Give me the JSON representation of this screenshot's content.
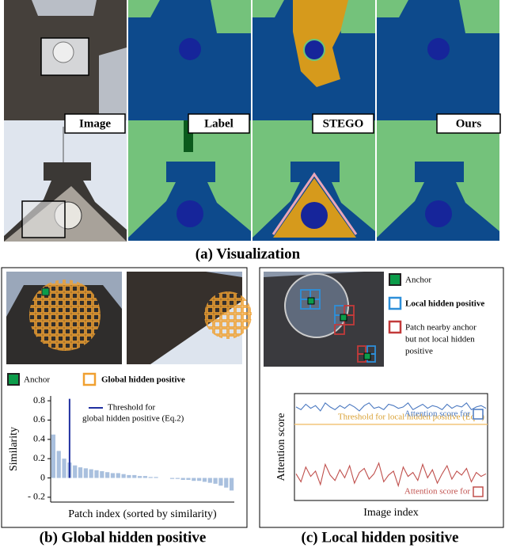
{
  "visualization": {
    "labels": [
      "Image",
      "Label",
      "STEGO",
      "Ours"
    ],
    "caption": "(a) Visualization"
  },
  "panel_b": {
    "legend": [
      "Anchor",
      "Global hidden positive"
    ],
    "caption": "(b) Global hidden positive"
  },
  "panel_c": {
    "legend": [
      "Anchor",
      "Local hidden positive",
      [
        "Patch nearby anchor",
        "but not local hidden",
        "positive"
      ]
    ],
    "caption": "(c) Local hidden positive"
  },
  "chart_data": [
    {
      "type": "bar",
      "ylabel": "Similarity",
      "xlabel": "Patch index (sorted by similarity)",
      "values": [
        0.45,
        0.28,
        0.2,
        0.16,
        0.13,
        0.11,
        0.1,
        0.09,
        0.08,
        0.07,
        0.06,
        0.05,
        0.05,
        0.04,
        0.03,
        0.03,
        0.02,
        0.02,
        0.01,
        0.01,
        0,
        0,
        -0.01,
        -0.01,
        -0.02,
        -0.02,
        -0.03,
        -0.03,
        -0.04,
        -0.05,
        -0.06,
        -0.08,
        -0.1,
        -0.13
      ],
      "color": "#a9c0de",
      "ylim": [
        -0.25,
        0.85
      ],
      "yticks": [
        0.8,
        0.6,
        0.4,
        0.2,
        0,
        {
          "value": -0.2,
          "label": "- 0.2"
        }
      ],
      "threshold": {
        "label_lines": [
          "Threshold for",
          "global hidden positive (Eq.2)"
        ],
        "color": "#1f2fa0",
        "x": 3,
        "y": [
          0,
          0.82
        ]
      }
    },
    {
      "type": "line",
      "ylabel": "Attention score",
      "xlabel": "Image index",
      "ylim": [
        0,
        0.8
      ],
      "series": [
        {
          "name": "Attention score for",
          "color": "#4a78c0",
          "values": [
            0.7,
            0.68,
            0.72,
            0.69,
            0.71,
            0.67,
            0.73,
            0.7,
            0.68,
            0.71,
            0.69,
            0.72,
            0.7,
            0.67,
            0.71,
            0.73,
            0.69,
            0.7,
            0.68,
            0.72,
            0.71,
            0.69,
            0.7,
            0.73,
            0.68,
            0.7,
            0.72,
            0.69,
            0.71,
            0.7,
            0.68,
            0.72,
            0.69,
            0.71,
            0.7,
            0.73,
            0.68,
            0.7,
            0.71,
            0.69
          ]
        },
        {
          "name": "Attention score for",
          "color": "#c0504d",
          "values": [
            0.2,
            0.14,
            0.25,
            0.18,
            0.22,
            0.12,
            0.27,
            0.19,
            0.15,
            0.23,
            0.17,
            0.26,
            0.13,
            0.21,
            0.24,
            0.16,
            0.2,
            0.28,
            0.14,
            0.19,
            0.22,
            0.11,
            0.25,
            0.18,
            0.21,
            0.15,
            0.27,
            0.17,
            0.23,
            0.13,
            0.2,
            0.26,
            0.16,
            0.22,
            0.19,
            0.24,
            0.14,
            0.21,
            0.18,
            0.2
          ]
        }
      ],
      "threshold": {
        "label": "Threshold for local hidden positive (Eq.7)",
        "value": 0.57,
        "color": "#f2c57a"
      }
    }
  ]
}
